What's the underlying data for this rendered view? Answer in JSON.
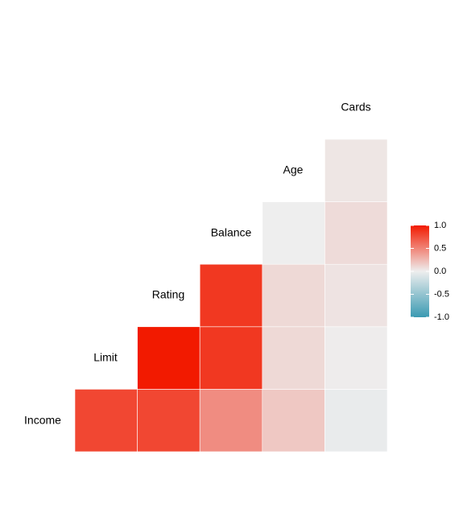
{
  "chart_data": {
    "type": "heatmap",
    "layout": "lower-triangle correlation matrix",
    "variables": [
      "Income",
      "Limit",
      "Rating",
      "Balance",
      "Age",
      "Cards"
    ],
    "cells": [
      {
        "row": "Limit",
        "col": "Income",
        "value": 0.79
      },
      {
        "row": "Rating",
        "col": "Income",
        "value": 0.79
      },
      {
        "row": "Balance",
        "col": "Income",
        "value": 0.46
      },
      {
        "row": "Age",
        "col": "Income",
        "value": 0.18
      },
      {
        "row": "Cards",
        "col": "Income",
        "value": -0.03
      },
      {
        "row": "Rating",
        "col": "Limit",
        "value": 1.0
      },
      {
        "row": "Balance",
        "col": "Limit",
        "value": 0.86
      },
      {
        "row": "Age",
        "col": "Limit",
        "value": 0.1
      },
      {
        "row": "Cards",
        "col": "Limit",
        "value": 0.01
      },
      {
        "row": "Balance",
        "col": "Rating",
        "value": 0.86
      },
      {
        "row": "Age",
        "col": "Rating",
        "value": 0.1
      },
      {
        "row": "Cards",
        "col": "Rating",
        "value": 0.05
      },
      {
        "row": "Age",
        "col": "Balance",
        "value": 0.0
      },
      {
        "row": "Cards",
        "col": "Balance",
        "value": 0.09
      },
      {
        "row": "Cards",
        "col": "Age",
        "value": 0.04
      }
    ],
    "fill_scale": {
      "low": "#3A9AB2",
      "mid": "#EEEEEE",
      "high": "#F21A00",
      "limits": [
        -1,
        1
      ]
    },
    "legend": {
      "position": "right",
      "ticks": [
        "1.0",
        "0.5",
        "0.0",
        "-0.5",
        "-1.0"
      ]
    },
    "grid": false
  }
}
